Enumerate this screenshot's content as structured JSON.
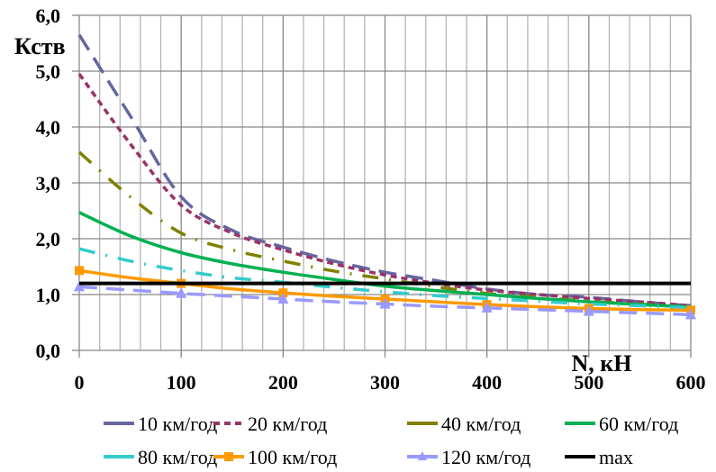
{
  "chart_data": {
    "type": "line",
    "title": "",
    "xlabel": "N, кН",
    "ylabel": "Кств",
    "xlim": [
      0,
      600
    ],
    "ylim": [
      0,
      6
    ],
    "x_ticks": [
      "0",
      "100",
      "200",
      "300",
      "400",
      "500",
      "600"
    ],
    "y_ticks": [
      "0,0",
      "1,0",
      "2,0",
      "3,0",
      "4,0",
      "5,0",
      "6,0"
    ],
    "grid": true,
    "legend_position": "bottom",
    "x": [
      0,
      50,
      100,
      150,
      200,
      250,
      300,
      350,
      400,
      450,
      500,
      550,
      600
    ],
    "series": [
      {
        "name": "10 км/год",
        "color": "#6666A0",
        "dash": "long-dash",
        "marker": "none",
        "values": [
          5.65,
          4.2,
          2.75,
          2.15,
          1.85,
          1.6,
          1.4,
          1.25,
          1.1,
          1.0,
          0.95,
          0.87,
          0.8
        ]
      },
      {
        "name": "20 км/год",
        "color": "#993366",
        "dash": "short-dash",
        "marker": "none",
        "values": [
          4.95,
          3.7,
          2.6,
          2.1,
          1.8,
          1.55,
          1.35,
          1.2,
          1.08,
          1.0,
          0.93,
          0.87,
          0.8
        ]
      },
      {
        "name": "40 км/год",
        "color": "#808000",
        "dash": "dash-dot-dot",
        "marker": "none",
        "values": [
          3.55,
          2.75,
          2.1,
          1.8,
          1.6,
          1.42,
          1.28,
          1.14,
          1.02,
          0.95,
          0.88,
          0.83,
          0.76
        ]
      },
      {
        "name": "60 км/год",
        "color": "#00B050",
        "dash": "solid",
        "marker": "none",
        "values": [
          2.47,
          2.05,
          1.75,
          1.55,
          1.4,
          1.27,
          1.15,
          1.07,
          1.0,
          0.93,
          0.87,
          0.82,
          0.78
        ]
      },
      {
        "name": "80 км/год",
        "color": "#33CCCC",
        "dash": "dash-dot-dot",
        "marker": "none",
        "values": [
          1.82,
          1.6,
          1.43,
          1.3,
          1.22,
          1.13,
          1.05,
          0.98,
          0.93,
          0.88,
          0.83,
          0.8,
          0.76
        ]
      },
      {
        "name": "100 км/год",
        "color": "#FF9900",
        "dash": "solid",
        "marker": "square",
        "values": [
          1.43,
          1.3,
          1.2,
          1.1,
          1.03,
          0.97,
          0.92,
          0.87,
          0.82,
          0.78,
          0.75,
          0.73,
          0.72
        ]
      },
      {
        "name": "120 км/год",
        "color": "#9999FF",
        "dash": "long-dash",
        "marker": "triangle",
        "values": [
          1.14,
          1.08,
          1.02,
          0.97,
          0.92,
          0.87,
          0.83,
          0.79,
          0.76,
          0.73,
          0.7,
          0.67,
          0.64
        ]
      },
      {
        "name": "max",
        "color": "#000000",
        "dash": "solid",
        "marker": "none",
        "values": [
          1.2,
          1.2,
          1.2,
          1.2,
          1.2,
          1.2,
          1.2,
          1.2,
          1.2,
          1.2,
          1.2,
          1.2,
          1.2
        ]
      }
    ]
  }
}
